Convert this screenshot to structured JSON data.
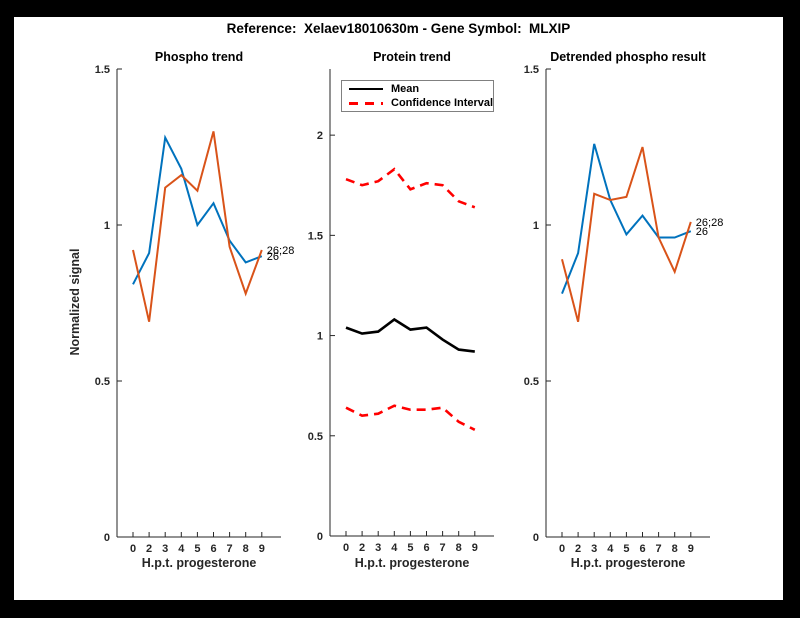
{
  "title": "Reference:  Xelaev18010630m - Gene Symbol:  MLXIP",
  "colors": {
    "blue": "#0072BD",
    "orange": "#D95319",
    "red": "#FF0000",
    "black": "#000000",
    "axis": "#262626",
    "figure_background": "#FFFFFF",
    "frame": "#000000"
  },
  "legend": {
    "items": [
      {
        "label": "Mean",
        "style": "solid",
        "color": "#000000"
      },
      {
        "label": "Confidence Interval",
        "style": "dashed",
        "color": "#FF0000"
      }
    ]
  },
  "chart_data": [
    {
      "type": "line",
      "title": "Phospho trend",
      "xlabel": "H.p.t. progesterone",
      "ylabel": "Normalized signal",
      "x_ticklabels": [
        "0",
        "2",
        "3",
        "4",
        "5",
        "6",
        "7",
        "8",
        "9"
      ],
      "y_ticklabels": [
        "0",
        "0.5",
        "1",
        "1.5"
      ],
      "y_tick_values": [
        0,
        0.5,
        1,
        1.5
      ],
      "ylim": [
        0,
        1.5
      ],
      "grid": false,
      "series": [
        {
          "name": "26",
          "color": "#0072BD",
          "dash": "solid",
          "width": 2,
          "values": [
            0.81,
            0.91,
            1.28,
            1.18,
            1.0,
            1.07,
            0.95,
            0.88,
            0.9
          ],
          "end_label": "26"
        },
        {
          "name": "26;28",
          "color": "#D95319",
          "dash": "solid",
          "width": 2,
          "values": [
            0.92,
            0.69,
            1.12,
            1.16,
            1.11,
            1.3,
            0.93,
            0.78,
            0.92
          ],
          "end_label": "26;28"
        }
      ]
    },
    {
      "type": "line",
      "title": "Protein trend",
      "xlabel": "H.p.t. progesterone",
      "ylabel": "",
      "x_ticklabels": [
        "0",
        "2",
        "3",
        "4",
        "5",
        "6",
        "7",
        "8",
        "9"
      ],
      "y_ticklabels": [
        "0",
        "0.5",
        "1",
        "1.5",
        "2"
      ],
      "y_tick_values": [
        0,
        0.5,
        1,
        1.5,
        2
      ],
      "ylim": [
        0,
        2.33
      ],
      "grid": false,
      "legend_position": "top-left-inside",
      "series": [
        {
          "name": "Mean",
          "color": "#000000",
          "dash": "solid",
          "width": 2.6,
          "values": [
            1.04,
            1.01,
            1.02,
            1.08,
            1.03,
            1.04,
            0.98,
            0.93,
            0.92
          ]
        },
        {
          "name": "Confidence Interval upper",
          "color": "#FF0000",
          "dash": "dashed",
          "width": 2.6,
          "values": [
            1.78,
            1.75,
            1.77,
            1.83,
            1.73,
            1.76,
            1.75,
            1.67,
            1.64
          ]
        },
        {
          "name": "Confidence Interval lower",
          "color": "#FF0000",
          "dash": "dashed",
          "width": 2.6,
          "values": [
            0.64,
            0.6,
            0.61,
            0.65,
            0.63,
            0.63,
            0.64,
            0.57,
            0.53
          ]
        }
      ]
    },
    {
      "type": "line",
      "title": "Detrended phospho result",
      "xlabel": "H.p.t. progesterone",
      "ylabel": "",
      "x_ticklabels": [
        "0",
        "2",
        "3",
        "4",
        "5",
        "6",
        "7",
        "8",
        "9"
      ],
      "y_ticklabels": [
        "0",
        "0.5",
        "1",
        "1.5"
      ],
      "y_tick_values": [
        0,
        0.5,
        1,
        1.5
      ],
      "ylim": [
        0,
        1.5
      ],
      "grid": false,
      "series": [
        {
          "name": "26",
          "color": "#0072BD",
          "dash": "solid",
          "width": 2,
          "values": [
            0.78,
            0.91,
            1.26,
            1.08,
            0.97,
            1.03,
            0.96,
            0.96,
            0.98
          ],
          "end_label": "26"
        },
        {
          "name": "26;28",
          "color": "#D95319",
          "dash": "solid",
          "width": 2,
          "values": [
            0.89,
            0.69,
            1.1,
            1.08,
            1.09,
            1.25,
            0.96,
            0.85,
            1.01
          ],
          "end_label": "26;28"
        }
      ]
    }
  ]
}
